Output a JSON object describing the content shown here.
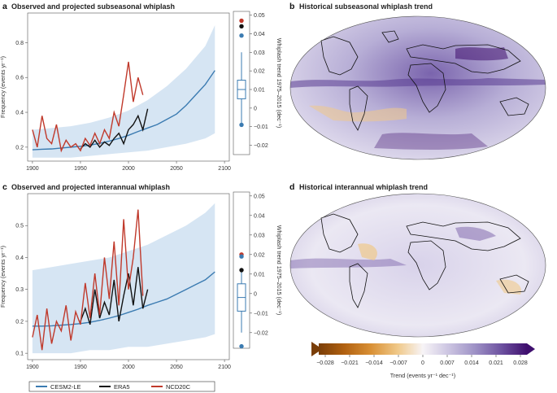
{
  "panels": {
    "a": {
      "letter": "a",
      "title": "Observed and projected subseasonal whiplash"
    },
    "b": {
      "letter": "b",
      "title": "Historical subseasonal whiplash trend"
    },
    "c": {
      "letter": "c",
      "title": "Observed and projected interannual whiplash"
    },
    "d": {
      "letter": "d",
      "title": "Historical interannual whiplash trend"
    }
  },
  "colorbar": {
    "label": "Trend (events yr⁻¹ dec⁻¹)",
    "ticks": [
      "−0.028",
      "−0.021",
      "−0.014",
      "−0.007",
      "0",
      "0.007",
      "0.014",
      "0.021",
      "0.028"
    ],
    "colors": [
      "#7a3e08",
      "#b06010",
      "#d99035",
      "#f0c98a",
      "#f7f4f7",
      "#cdc6e2",
      "#9e92c6",
      "#6c509f",
      "#3f0f6e"
    ]
  },
  "legend": [
    {
      "name": "CESM2-LE",
      "color": "#3b7bb1"
    },
    {
      "name": "ERA5",
      "color": "#111111"
    },
    {
      "name": "NCD20C",
      "color": "#c0392b"
    }
  ],
  "chart_data": [
    {
      "type": "line",
      "panel": "a",
      "xlabel": "",
      "ylabel": "Frequency (events yr⁻¹)",
      "xlim": [
        1895,
        2105
      ],
      "ylim": [
        0.12,
        0.97
      ],
      "xticks": [
        1900,
        1950,
        2000,
        2050,
        2100
      ],
      "yticks": [
        0.2,
        0.4,
        0.6,
        0.8
      ],
      "ytick_labels": [
        "0.2",
        "0.4",
        "0.6",
        "0.8"
      ],
      "xtick_labels": [
        "1900",
        "1950",
        "2000",
        "2050",
        "2100"
      ],
      "series": [
        {
          "name": "CESM2-LE",
          "color": "#3b7bb1",
          "x": [
            1900,
            1910,
            1920,
            1930,
            1940,
            1950,
            1960,
            1970,
            1980,
            1990,
            2000,
            2010,
            2020,
            2030,
            2040,
            2050,
            2060,
            2070,
            2080,
            2090
          ],
          "y": [
            0.185,
            0.188,
            0.19,
            0.195,
            0.2,
            0.205,
            0.212,
            0.222,
            0.235,
            0.25,
            0.268,
            0.29,
            0.31,
            0.33,
            0.36,
            0.39,
            0.44,
            0.5,
            0.56,
            0.64
          ]
        },
        {
          "name": "ERA5",
          "color": "#111111",
          "x": [
            1950,
            1955,
            1960,
            1965,
            1970,
            1975,
            1980,
            1985,
            1990,
            1995,
            2000,
            2005,
            2010,
            2015,
            2020
          ],
          "y": [
            0.19,
            0.22,
            0.2,
            0.24,
            0.2,
            0.23,
            0.21,
            0.25,
            0.28,
            0.22,
            0.3,
            0.33,
            0.38,
            0.3,
            0.42
          ]
        },
        {
          "name": "NCD20C",
          "color": "#c0392b",
          "x": [
            1900,
            1905,
            1910,
            1915,
            1920,
            1925,
            1930,
            1935,
            1940,
            1945,
            1950,
            1955,
            1960,
            1965,
            1970,
            1975,
            1980,
            1985,
            1990,
            1995,
            2000,
            2005,
            2010,
            2015
          ],
          "y": [
            0.3,
            0.2,
            0.38,
            0.25,
            0.22,
            0.33,
            0.18,
            0.24,
            0.2,
            0.22,
            0.18,
            0.25,
            0.21,
            0.28,
            0.22,
            0.3,
            0.25,
            0.4,
            0.32,
            0.5,
            0.69,
            0.46,
            0.6,
            0.5
          ]
        }
      ],
      "band": {
        "x": [
          1900,
          1920,
          1940,
          1960,
          1980,
          2000,
          2020,
          2040,
          2060,
          2080,
          2090
        ],
        "low": [
          0.14,
          0.14,
          0.14,
          0.15,
          0.16,
          0.17,
          0.18,
          0.2,
          0.22,
          0.25,
          0.28
        ],
        "high": [
          0.3,
          0.31,
          0.32,
          0.34,
          0.37,
          0.41,
          0.47,
          0.55,
          0.65,
          0.78,
          0.9
        ]
      }
    },
    {
      "type": "boxplot",
      "panel": "a-inset",
      "ylabel": "Whiplash trend 1975–2015 (dec⁻¹)",
      "ylim": [
        -0.025,
        0.052
      ],
      "yticks": [
        -0.02,
        -0.01,
        0,
        0.01,
        0.02,
        0.03,
        0.04,
        0.05
      ],
      "ytick_labels": [
        "−0.02",
        "−0.01",
        "0",
        "0.01",
        "0.02",
        "0.03",
        "0.04",
        "0.05"
      ],
      "box": {
        "q1": 0.005,
        "median": 0.01,
        "q3": 0.015,
        "whisker_low": -0.01,
        "whisker_high": 0.03
      },
      "points": [
        {
          "name": "NCD20C",
          "value": 0.047
        },
        {
          "name": "ERA5",
          "value": 0.044
        },
        {
          "name": "CESM2-LE",
          "value": 0.039
        },
        {
          "name": "CESM2-LE",
          "value": -0.009
        }
      ]
    },
    {
      "type": "line",
      "panel": "c",
      "xlabel": "",
      "ylabel": "Frequency (events yr⁻¹)",
      "xlim": [
        1895,
        2105
      ],
      "ylim": [
        0.08,
        0.6
      ],
      "xticks": [
        1900,
        1950,
        2000,
        2050,
        2100
      ],
      "yticks": [
        0.1,
        0.2,
        0.3,
        0.4,
        0.5
      ],
      "ytick_labels": [
        "0.1",
        "0.2",
        "0.3",
        "0.4",
        "0.5"
      ],
      "xtick_labels": [
        "1900",
        "1950",
        "2000",
        "2050",
        "2100"
      ],
      "series": [
        {
          "name": "CESM2-LE",
          "color": "#3b7bb1",
          "x": [
            1900,
            1910,
            1920,
            1930,
            1940,
            1950,
            1960,
            1970,
            1980,
            1990,
            2000,
            2010,
            2020,
            2030,
            2040,
            2050,
            2060,
            2070,
            2080,
            2090
          ],
          "y": [
            0.185,
            0.185,
            0.186,
            0.188,
            0.19,
            0.193,
            0.197,
            0.203,
            0.21,
            0.218,
            0.228,
            0.238,
            0.25,
            0.26,
            0.27,
            0.285,
            0.3,
            0.315,
            0.33,
            0.355
          ]
        },
        {
          "name": "ERA5",
          "color": "#111111",
          "x": [
            1950,
            1955,
            1960,
            1965,
            1970,
            1975,
            1980,
            1985,
            1990,
            1995,
            2000,
            2005,
            2010,
            2015,
            2020
          ],
          "y": [
            0.2,
            0.24,
            0.19,
            0.3,
            0.21,
            0.26,
            0.22,
            0.33,
            0.2,
            0.28,
            0.35,
            0.25,
            0.37,
            0.24,
            0.3
          ]
        },
        {
          "name": "NCD20C",
          "color": "#c0392b",
          "x": [
            1900,
            1905,
            1910,
            1915,
            1920,
            1925,
            1930,
            1935,
            1940,
            1945,
            1950,
            1955,
            1960,
            1965,
            1970,
            1975,
            1980,
            1985,
            1990,
            1995,
            2000,
            2005,
            2010,
            2015
          ],
          "y": [
            0.15,
            0.22,
            0.11,
            0.24,
            0.13,
            0.2,
            0.17,
            0.25,
            0.14,
            0.23,
            0.19,
            0.32,
            0.21,
            0.35,
            0.22,
            0.4,
            0.27,
            0.45,
            0.25,
            0.52,
            0.3,
            0.4,
            0.55,
            0.28
          ]
        }
      ],
      "band": {
        "x": [
          1900,
          1920,
          1940,
          1960,
          1980,
          2000,
          2020,
          2040,
          2060,
          2080,
          2090
        ],
        "low": [
          0.1,
          0.1,
          0.1,
          0.11,
          0.11,
          0.12,
          0.12,
          0.13,
          0.14,
          0.15,
          0.16
        ],
        "high": [
          0.36,
          0.37,
          0.38,
          0.39,
          0.4,
          0.42,
          0.44,
          0.47,
          0.5,
          0.54,
          0.57
        ]
      }
    },
    {
      "type": "boxplot",
      "panel": "c-inset",
      "ylabel": "Whiplash trend 1975–2015 (dec⁻¹)",
      "ylim": [
        -0.028,
        0.052
      ],
      "yticks": [
        -0.02,
        -0.01,
        0,
        0.01,
        0.02,
        0.03,
        0.04,
        0.05
      ],
      "ytick_labels": [
        "−0.02",
        "−0.01",
        "0",
        "0.01",
        "0.02",
        "0.03",
        "0.04",
        "0.05"
      ],
      "box": {
        "q1": -0.009,
        "median": -0.002,
        "q3": 0.005,
        "whisker_low": -0.02,
        "whisker_high": 0.012
      },
      "points": [
        {
          "name": "NCD20C",
          "value": 0.02
        },
        {
          "name": "CESM2-LE",
          "value": 0.019
        },
        {
          "name": "ERA5",
          "value": 0.012
        },
        {
          "name": "CESM2-LE",
          "value": -0.027
        }
      ]
    }
  ]
}
